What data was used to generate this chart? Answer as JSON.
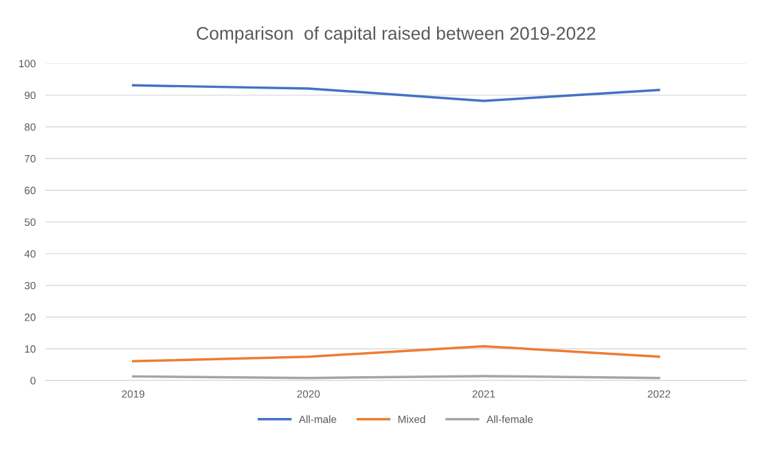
{
  "chart_data": {
    "type": "line",
    "title": "Comparison  of capital raised between 2019-2022",
    "categories": [
      "2019",
      "2020",
      "2021",
      "2022"
    ],
    "series": [
      {
        "name": "All-male",
        "color": "#4472c4",
        "values": [
          93.1,
          92.1,
          88.2,
          91.6
        ]
      },
      {
        "name": "Mixed",
        "color": "#ed7d31",
        "values": [
          6.1,
          7.5,
          10.8,
          7.5
        ]
      },
      {
        "name": "All-female",
        "color": "#a5a5a5",
        "values": [
          1.3,
          0.8,
          1.4,
          0.8
        ]
      }
    ],
    "ylim": [
      0,
      100
    ],
    "yticks": [
      0,
      10,
      20,
      30,
      40,
      50,
      60,
      70,
      80,
      90,
      100
    ],
    "grid": "y",
    "legend": "bottom",
    "marker": "none",
    "line_style": "solid"
  }
}
